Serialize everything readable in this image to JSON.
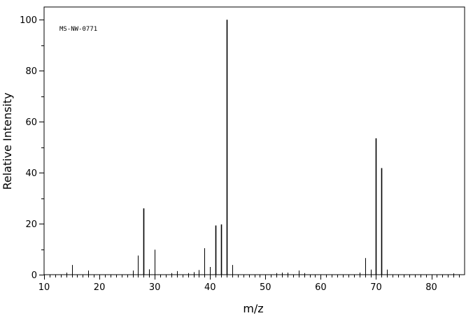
{
  "chart_data": {
    "type": "bar",
    "title": "",
    "annotation": "MS-NW-0771",
    "xlabel": "m/z",
    "ylabel": "Relative Intensity",
    "xlim": [
      10,
      86
    ],
    "ylim": [
      0,
      105
    ],
    "x_major_ticks": [
      10,
      20,
      30,
      40,
      50,
      60,
      70,
      80
    ],
    "x_minor_step": 1,
    "y_major_ticks": [
      0,
      20,
      40,
      60,
      80,
      100
    ],
    "y_minor_step": 10,
    "grid": false,
    "series": [
      {
        "x": [
          14,
          15,
          18,
          26,
          27,
          28,
          29,
          30,
          33,
          34,
          36,
          37,
          38,
          39,
          40,
          41,
          42,
          43,
          44,
          52,
          53,
          54,
          56,
          57,
          67,
          68,
          69,
          70,
          71,
          72,
          84
        ],
        "y": [
          0.8,
          3.8,
          1.6,
          1.6,
          7.5,
          26.0,
          2.1,
          9.8,
          0.6,
          1.4,
          0.6,
          1.0,
          1.8,
          10.4,
          3.0,
          19.3,
          19.7,
          100.0,
          3.8,
          0.6,
          0.8,
          0.8,
          1.6,
          0.6,
          0.8,
          6.5,
          2.0,
          53.5,
          41.8,
          2.0,
          0.5
        ]
      }
    ]
  }
}
